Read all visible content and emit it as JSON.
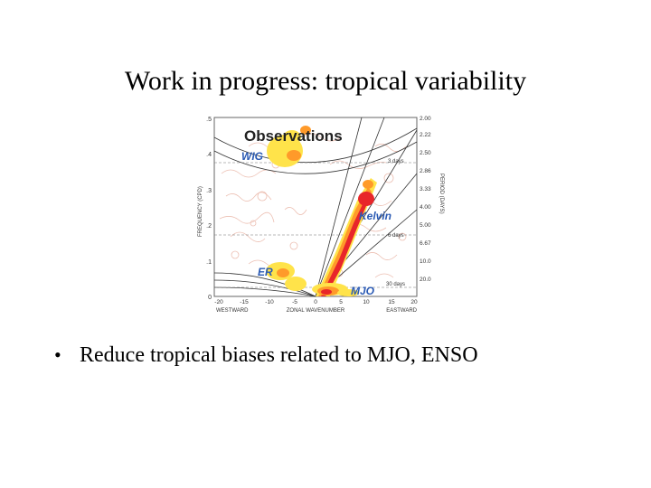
{
  "slide": {
    "title": "Work in progress: tropical variability",
    "bullets": [
      {
        "text": "Reduce tropical biases related to MJO, ENSO"
      }
    ]
  },
  "figure": {
    "heading": "Observations",
    "labels": {
      "wig": "WIG",
      "kelvin": "Kelvin",
      "er": "ER",
      "mjo": "MJO"
    },
    "y_axis_label": "FREQUENCY (CPD)",
    "y_ticks": [
      ".5",
      ".4",
      ".3",
      ".2",
      ".1",
      "0"
    ],
    "right_axis_label": "PERIOD (DAYS)",
    "right_ticks": [
      "2.00",
      "2.22",
      "2.50",
      "2.86",
      "3.33",
      "4.00",
      "5.00",
      "6.67",
      "10.0",
      "20.0"
    ],
    "x_ticks": [
      "-20",
      "-15",
      "-10",
      "-5",
      "0",
      "5",
      "10",
      "15",
      "20"
    ],
    "x_axis_left": "WESTWARD",
    "x_axis_center": "ZONAL WAVENUMBER",
    "x_axis_right": "EASTWARD",
    "period_annotations": [
      "3 days",
      "6 days",
      "30 days"
    ]
  },
  "colors": {
    "hot": "#e8262a",
    "warm": "#ff9a2a",
    "yellow": "#ffe34a",
    "label_blue": "#2a5ab4"
  }
}
